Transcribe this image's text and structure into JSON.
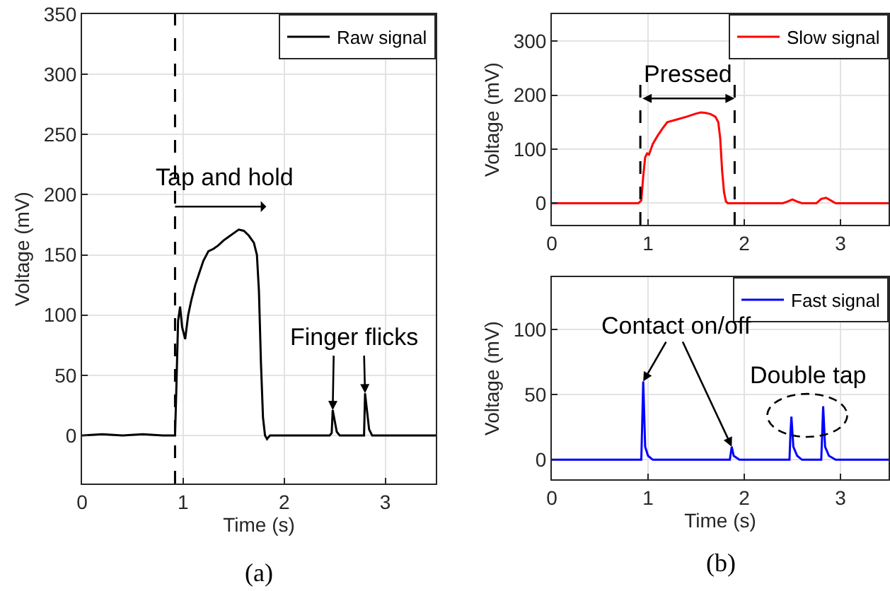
{
  "chart_data": [
    {
      "type": "line",
      "xlabel": "Time (s)",
      "ylabel": "Voltage (mV)",
      "xlim": [
        0,
        3.5
      ],
      "xticks": [
        0,
        1,
        2,
        3
      ],
      "ylim": [
        -40,
        350
      ],
      "yticks": [
        0,
        50,
        100,
        150,
        200,
        250,
        300,
        350
      ],
      "grid": true,
      "legend": "top right",
      "series": [
        {
          "name": "Raw signal",
          "color": "#000000",
          "x": [
            0,
            0.2,
            0.4,
            0.6,
            0.8,
            0.92,
            0.93,
            0.95,
            0.97,
            0.99,
            1.02,
            1.05,
            1.08,
            1.12,
            1.16,
            1.2,
            1.25,
            1.3,
            1.35,
            1.4,
            1.45,
            1.5,
            1.55,
            1.6,
            1.65,
            1.7,
            1.73,
            1.75,
            1.77,
            1.79,
            1.81,
            1.83,
            1.86,
            2.0,
            2.2,
            2.45,
            2.47,
            2.48,
            2.5,
            2.52,
            2.55,
            2.7,
            2.79,
            2.8,
            2.82,
            2.84,
            2.87,
            3.0,
            3.2,
            3.5
          ],
          "values": [
            0,
            1,
            0,
            1,
            0,
            0,
            30,
            95,
            107,
            90,
            80,
            100,
            112,
            125,
            135,
            145,
            153,
            155,
            158,
            162,
            165,
            168,
            171,
            170,
            166,
            160,
            150,
            120,
            60,
            15,
            0,
            -3,
            0,
            0,
            0,
            0,
            2,
            21,
            12,
            3,
            0,
            0,
            0,
            35,
            20,
            5,
            0,
            0,
            0,
            0
          ]
        }
      ],
      "ref_lines": [
        {
          "axis": "x",
          "value": 0.92,
          "color": "#000000",
          "line_style": "dashed"
        }
      ],
      "annotations": [
        "Tap and hold",
        {
          "text": "Finger flicks",
          "x": 2.48,
          "y": 21
        },
        "(a)"
      ]
    },
    {
      "type": "line",
      "ylabel": "Voltage (mV)",
      "xlim": [
        0,
        3.5
      ],
      "xticks": [
        0,
        1,
        2,
        3
      ],
      "ylim": [
        -40,
        350
      ],
      "yticks": [
        0,
        100,
        200,
        300
      ],
      "grid": true,
      "legend": "top right",
      "series": [
        {
          "name": "Slow signal",
          "color": "#ff0000",
          "x": [
            0,
            0.5,
            0.9,
            0.93,
            0.95,
            0.97,
            0.99,
            1.01,
            1.05,
            1.1,
            1.15,
            1.2,
            1.3,
            1.4,
            1.5,
            1.55,
            1.6,
            1.65,
            1.7,
            1.73,
            1.75,
            1.77,
            1.79,
            1.81,
            1.83,
            1.86,
            2.0,
            2.4,
            2.45,
            2.5,
            2.55,
            2.6,
            2.75,
            2.8,
            2.85,
            2.9,
            2.95,
            3.5
          ],
          "values": [
            0,
            0,
            0,
            5,
            50,
            85,
            92,
            90,
            110,
            125,
            138,
            150,
            155,
            160,
            166,
            168,
            167,
            165,
            160,
            150,
            120,
            60,
            20,
            3,
            0,
            0,
            0,
            0,
            3,
            7,
            3,
            0,
            0,
            8,
            10,
            5,
            0,
            0
          ]
        }
      ],
      "ref_lines": [
        {
          "axis": "x",
          "value": 0.92,
          "color": "#000000",
          "line_style": "dashed"
        },
        {
          "axis": "x",
          "value": 1.9,
          "color": "#000000",
          "line_style": "dashed"
        }
      ],
      "annotations": [
        "Pressed"
      ]
    },
    {
      "type": "line",
      "xlabel": "Time (s)",
      "ylabel": "Voltage (mV)",
      "xlim": [
        0,
        3.5
      ],
      "xticks": [
        0,
        1,
        2,
        3
      ],
      "ylim": [
        -15,
        140
      ],
      "yticks": [
        0,
        50,
        100
      ],
      "grid": true,
      "legend": "top right",
      "series": [
        {
          "name": "Fast signal",
          "color": "#0000ff",
          "x": [
            0,
            0.5,
            0.93,
            0.94,
            0.95,
            0.97,
            1.0,
            1.05,
            1.2,
            1.5,
            1.85,
            1.86,
            1.87,
            1.89,
            1.95,
            2.2,
            2.47,
            2.48,
            2.49,
            2.51,
            2.55,
            2.6,
            2.8,
            2.81,
            2.82,
            2.84,
            2.88,
            2.95,
            3.2,
            3.5
          ],
          "values": [
            0,
            0,
            0,
            30,
            60,
            10,
            3,
            0,
            0,
            0,
            0,
            5,
            10,
            3,
            0,
            0,
            0,
            20,
            33,
            10,
            3,
            0,
            0,
            20,
            41,
            10,
            3,
            0,
            0,
            0
          ]
        }
      ],
      "annotations": [
        {
          "text": "Contact on/off",
          "x": 0.95,
          "y": 60
        },
        "Double tap",
        "(b)"
      ]
    }
  ]
}
